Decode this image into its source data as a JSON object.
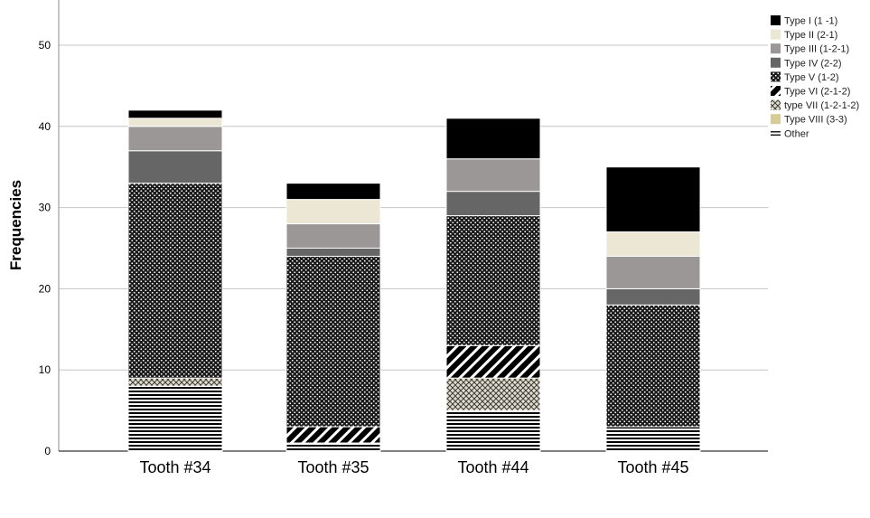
{
  "chart_data": {
    "type": "bar",
    "stacked": true,
    "title": "",
    "xlabel": "",
    "ylabel": "Frequencies",
    "ylim": [
      0,
      55
    ],
    "yticks": [
      0,
      10,
      20,
      30,
      40,
      50
    ],
    "grid": true,
    "legend_position": "top-right",
    "categories": [
      "Tooth #34",
      "Tooth #35",
      "Tooth #44",
      "Tooth #45"
    ],
    "series": [
      {
        "name": "Other",
        "pattern": "horizontal-lines",
        "color": "#000000",
        "values": [
          8,
          1,
          5,
          3
        ]
      },
      {
        "name": "Type VIII (3-3)",
        "pattern": "solid",
        "color": "#d6cc98",
        "values": [
          0,
          0,
          0,
          0
        ]
      },
      {
        "name": "type VII (1-2-1-2)",
        "pattern": "crosshatch",
        "color": "#d9d3c4",
        "values": [
          1,
          0,
          4,
          0
        ]
      },
      {
        "name": "Type VI (2-1-2)",
        "pattern": "diagonal-stripes",
        "color": "#000000",
        "values": [
          0,
          2,
          4,
          0
        ]
      },
      {
        "name": "Type V (1-2)",
        "pattern": "dots",
        "color": "#000000",
        "values": [
          24,
          21,
          16,
          15
        ]
      },
      {
        "name": "Type IV (2-2)",
        "pattern": "solid",
        "color": "#666666",
        "values": [
          4,
          1,
          3,
          2
        ]
      },
      {
        "name": "Type III (1-2-1)",
        "pattern": "solid",
        "color": "#9b9797",
        "values": [
          3,
          3,
          4,
          4
        ]
      },
      {
        "name": "Type II (2-1)",
        "pattern": "solid",
        "color": "#ece6d4",
        "values": [
          1,
          3,
          0,
          3
        ]
      },
      {
        "name": "Type I (1 -1)",
        "pattern": "solid",
        "color": "#000000",
        "values": [
          1,
          2,
          5,
          8
        ]
      }
    ],
    "legend_order": [
      "Type I (1 -1)",
      "Type II (2-1)",
      "Type III (1-2-1)",
      "Type IV (2-2)",
      "Type V (1-2)",
      "Type VI (2-1-2)",
      "type VII (1-2-1-2)",
      "Type VIII (3-3)",
      "Other"
    ]
  }
}
